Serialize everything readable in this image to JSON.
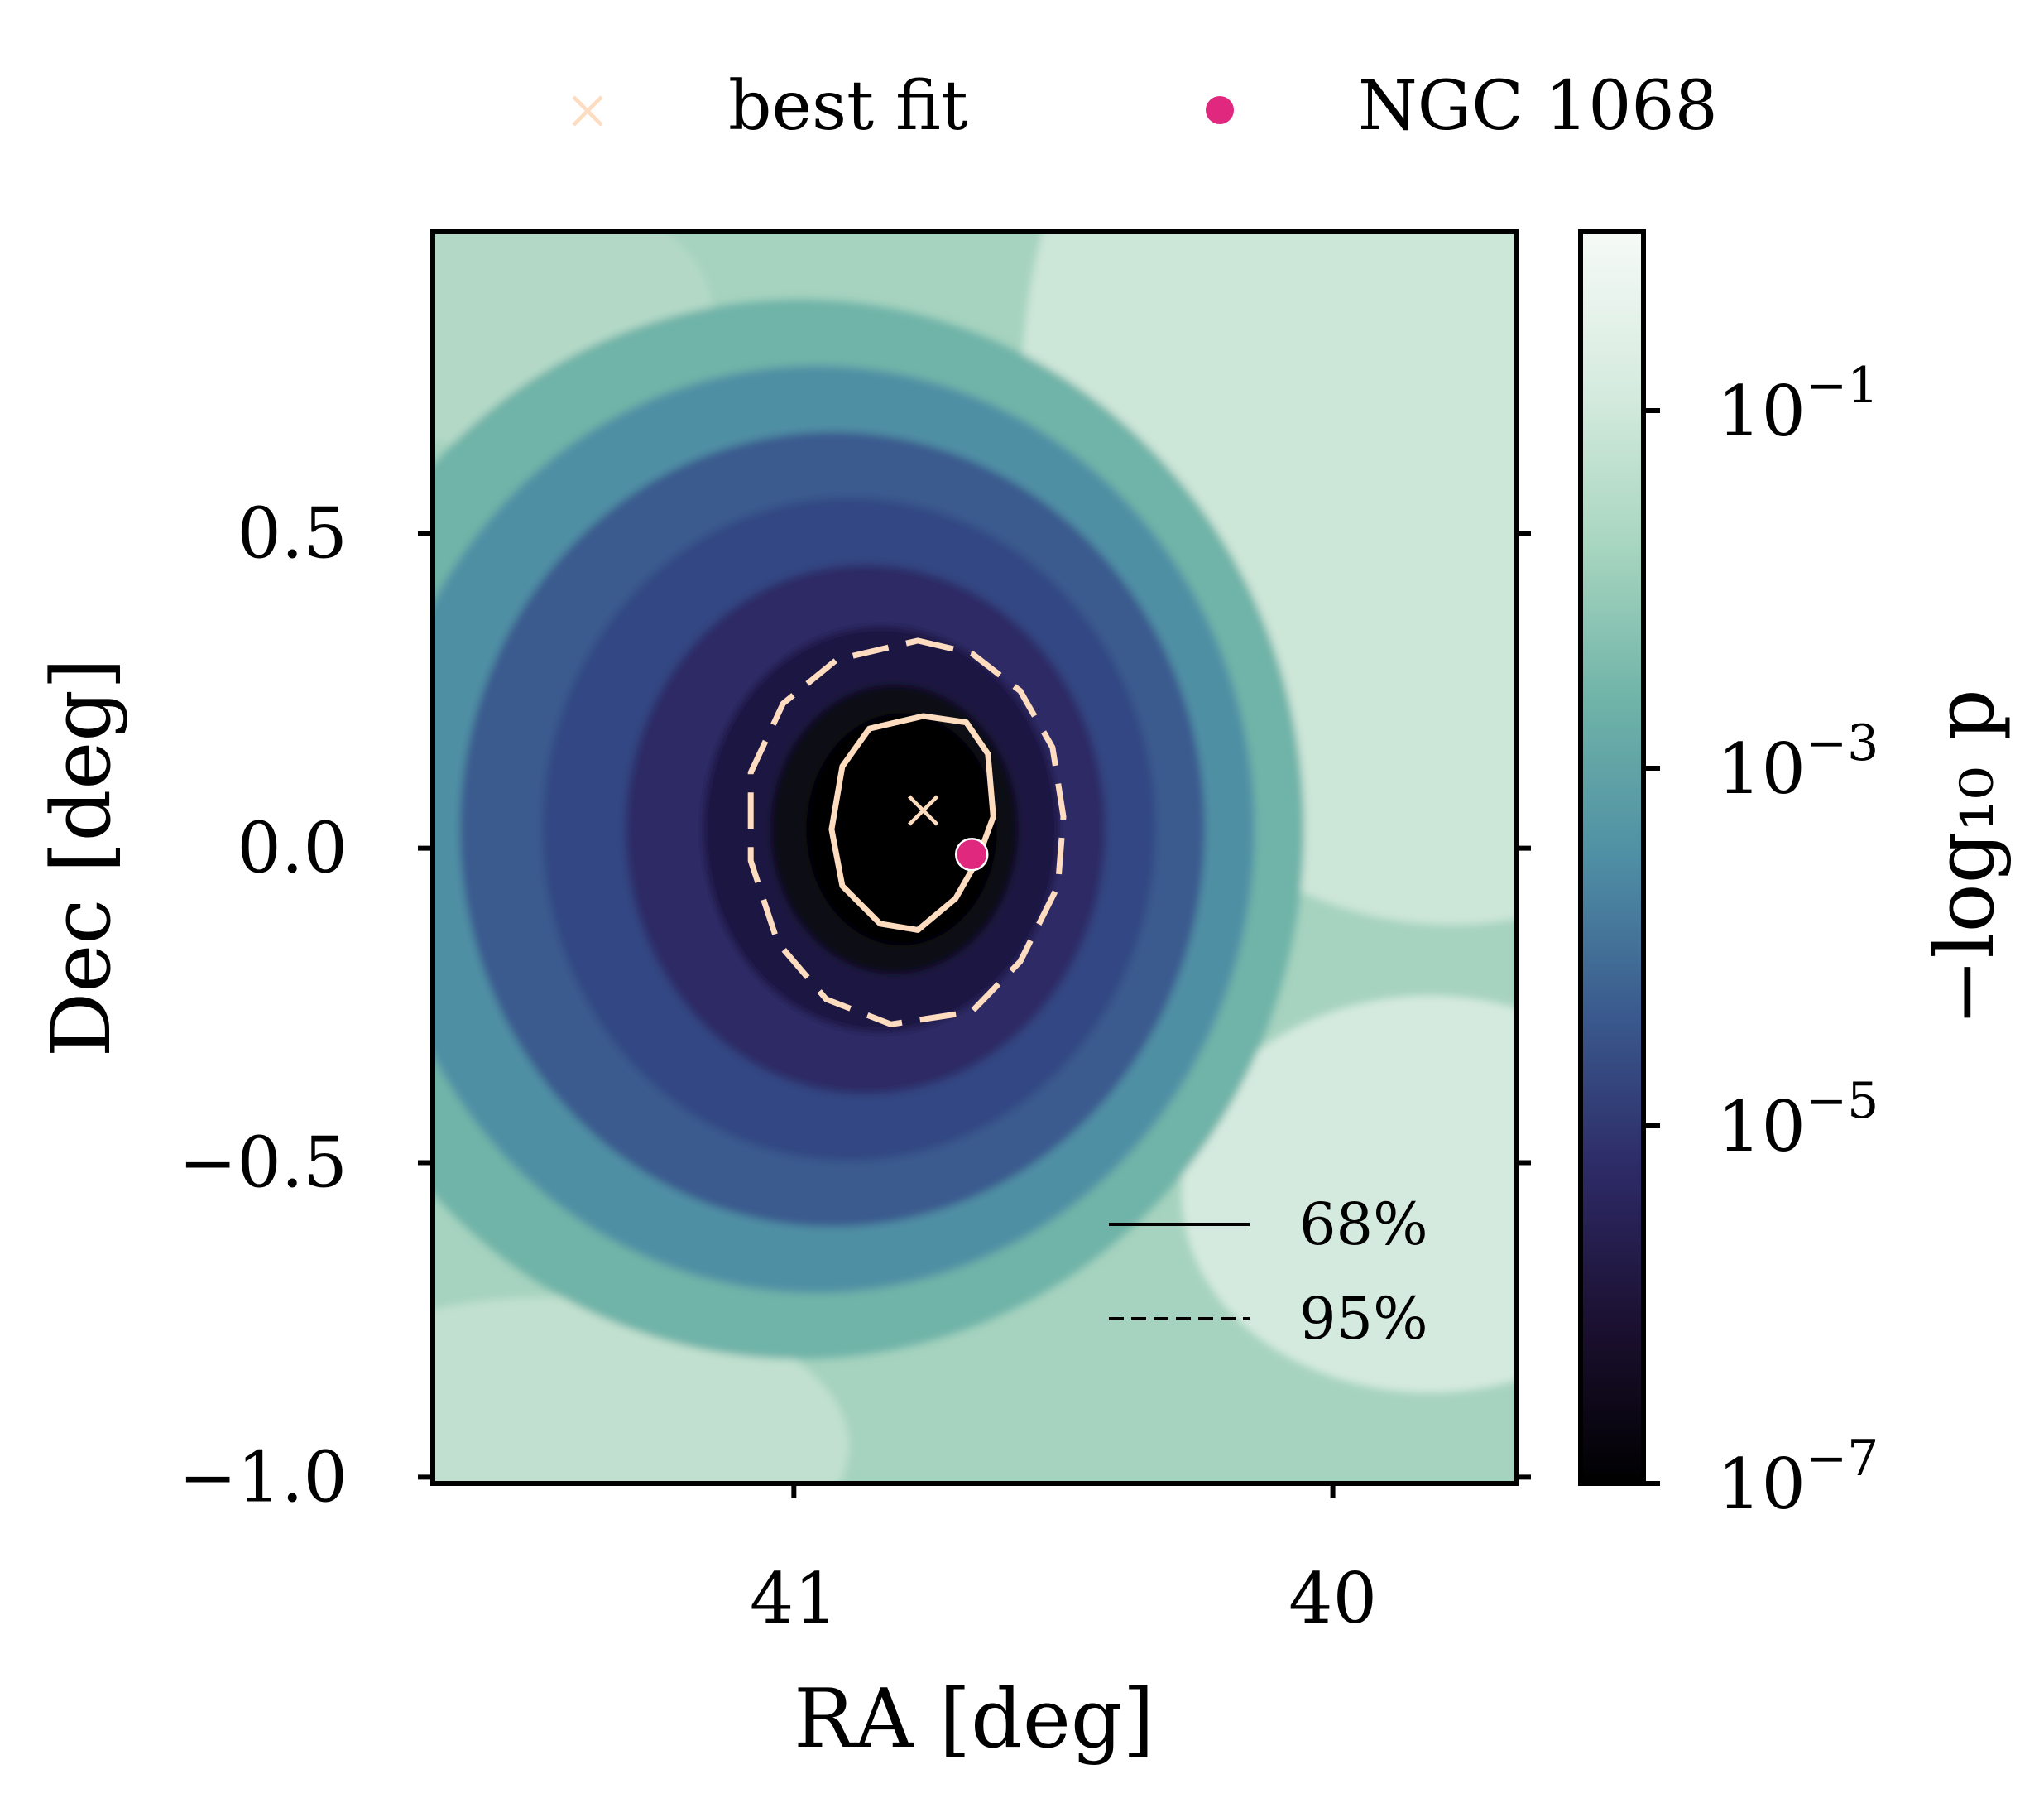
{
  "chart_data": {
    "type": "heatmap",
    "title": "",
    "xlabel": "RA [deg]",
    "ylabel": "Dec [deg]",
    "xlim": [
      41.67,
      39.66
    ],
    "ylim": [
      -1.01,
      0.98
    ],
    "x_ticks": [
      41,
      40
    ],
    "x_tick_labels": [
      "41",
      "40"
    ],
    "y_ticks": [
      0.5,
      0.0,
      -0.5,
      -1.0
    ],
    "y_tick_labels": [
      "0.5",
      "0.0",
      "−0.5",
      "−1.0"
    ],
    "colorbar": {
      "label": "−log₁₀ p",
      "scale": "log",
      "range": [
        1e-07,
        1
      ],
      "ticks": [
        0.1,
        0.001,
        1e-05,
        1e-07
      ],
      "tick_bases": [
        "10",
        "10",
        "10",
        "10"
      ],
      "tick_exponents": [
        "−1",
        "−3",
        "−5",
        "−7"
      ],
      "colors": [
        "#000000",
        "#1b1030",
        "#2d2a66",
        "#3a5a8e",
        "#4f8fa4",
        "#6fb3a8",
        "#a8d6c0",
        "#d6ebdf",
        "#f6faf7"
      ]
    },
    "legend": {
      "placement": "top, outside",
      "entries": [
        {
          "label": "best fit",
          "marker": "x",
          "color": "#fddcc0"
        },
        {
          "label": "NGC 1068",
          "marker": "circle",
          "color": "#e0287f"
        }
      ]
    },
    "points": {
      "best_fit": {
        "ra": 40.76,
        "dec": 0.06
      },
      "ngc_1068": {
        "ra": 40.67,
        "dec": -0.01
      }
    },
    "contour_legend": {
      "placement": "lower right",
      "entries": [
        {
          "label": "68%",
          "style": "solid"
        },
        {
          "label": "95%",
          "style": "dashed"
        }
      ]
    },
    "contours": {
      "color": "#fddcc0",
      "level_68": [
        [
          40.76,
          0.21
        ],
        [
          40.68,
          0.2
        ],
        [
          40.64,
          0.15
        ],
        [
          40.63,
          0.05
        ],
        [
          40.66,
          -0.02
        ],
        [
          40.7,
          -0.08
        ],
        [
          40.77,
          -0.13
        ],
        [
          40.84,
          -0.12
        ],
        [
          40.91,
          -0.06
        ],
        [
          40.93,
          0.03
        ],
        [
          40.91,
          0.13
        ],
        [
          40.86,
          0.19
        ]
      ],
      "level_95": [
        [
          40.77,
          0.33
        ],
        [
          40.67,
          0.31
        ],
        [
          40.58,
          0.25
        ],
        [
          40.52,
          0.16
        ],
        [
          40.5,
          0.05
        ],
        [
          40.51,
          -0.06
        ],
        [
          40.58,
          -0.18
        ],
        [
          40.67,
          -0.26
        ],
        [
          40.82,
          -0.28
        ],
        [
          40.94,
          -0.24
        ],
        [
          41.03,
          -0.15
        ],
        [
          41.08,
          -0.02
        ],
        [
          41.08,
          0.12
        ],
        [
          41.02,
          0.23
        ],
        [
          40.92,
          0.3
        ]
      ]
    }
  }
}
